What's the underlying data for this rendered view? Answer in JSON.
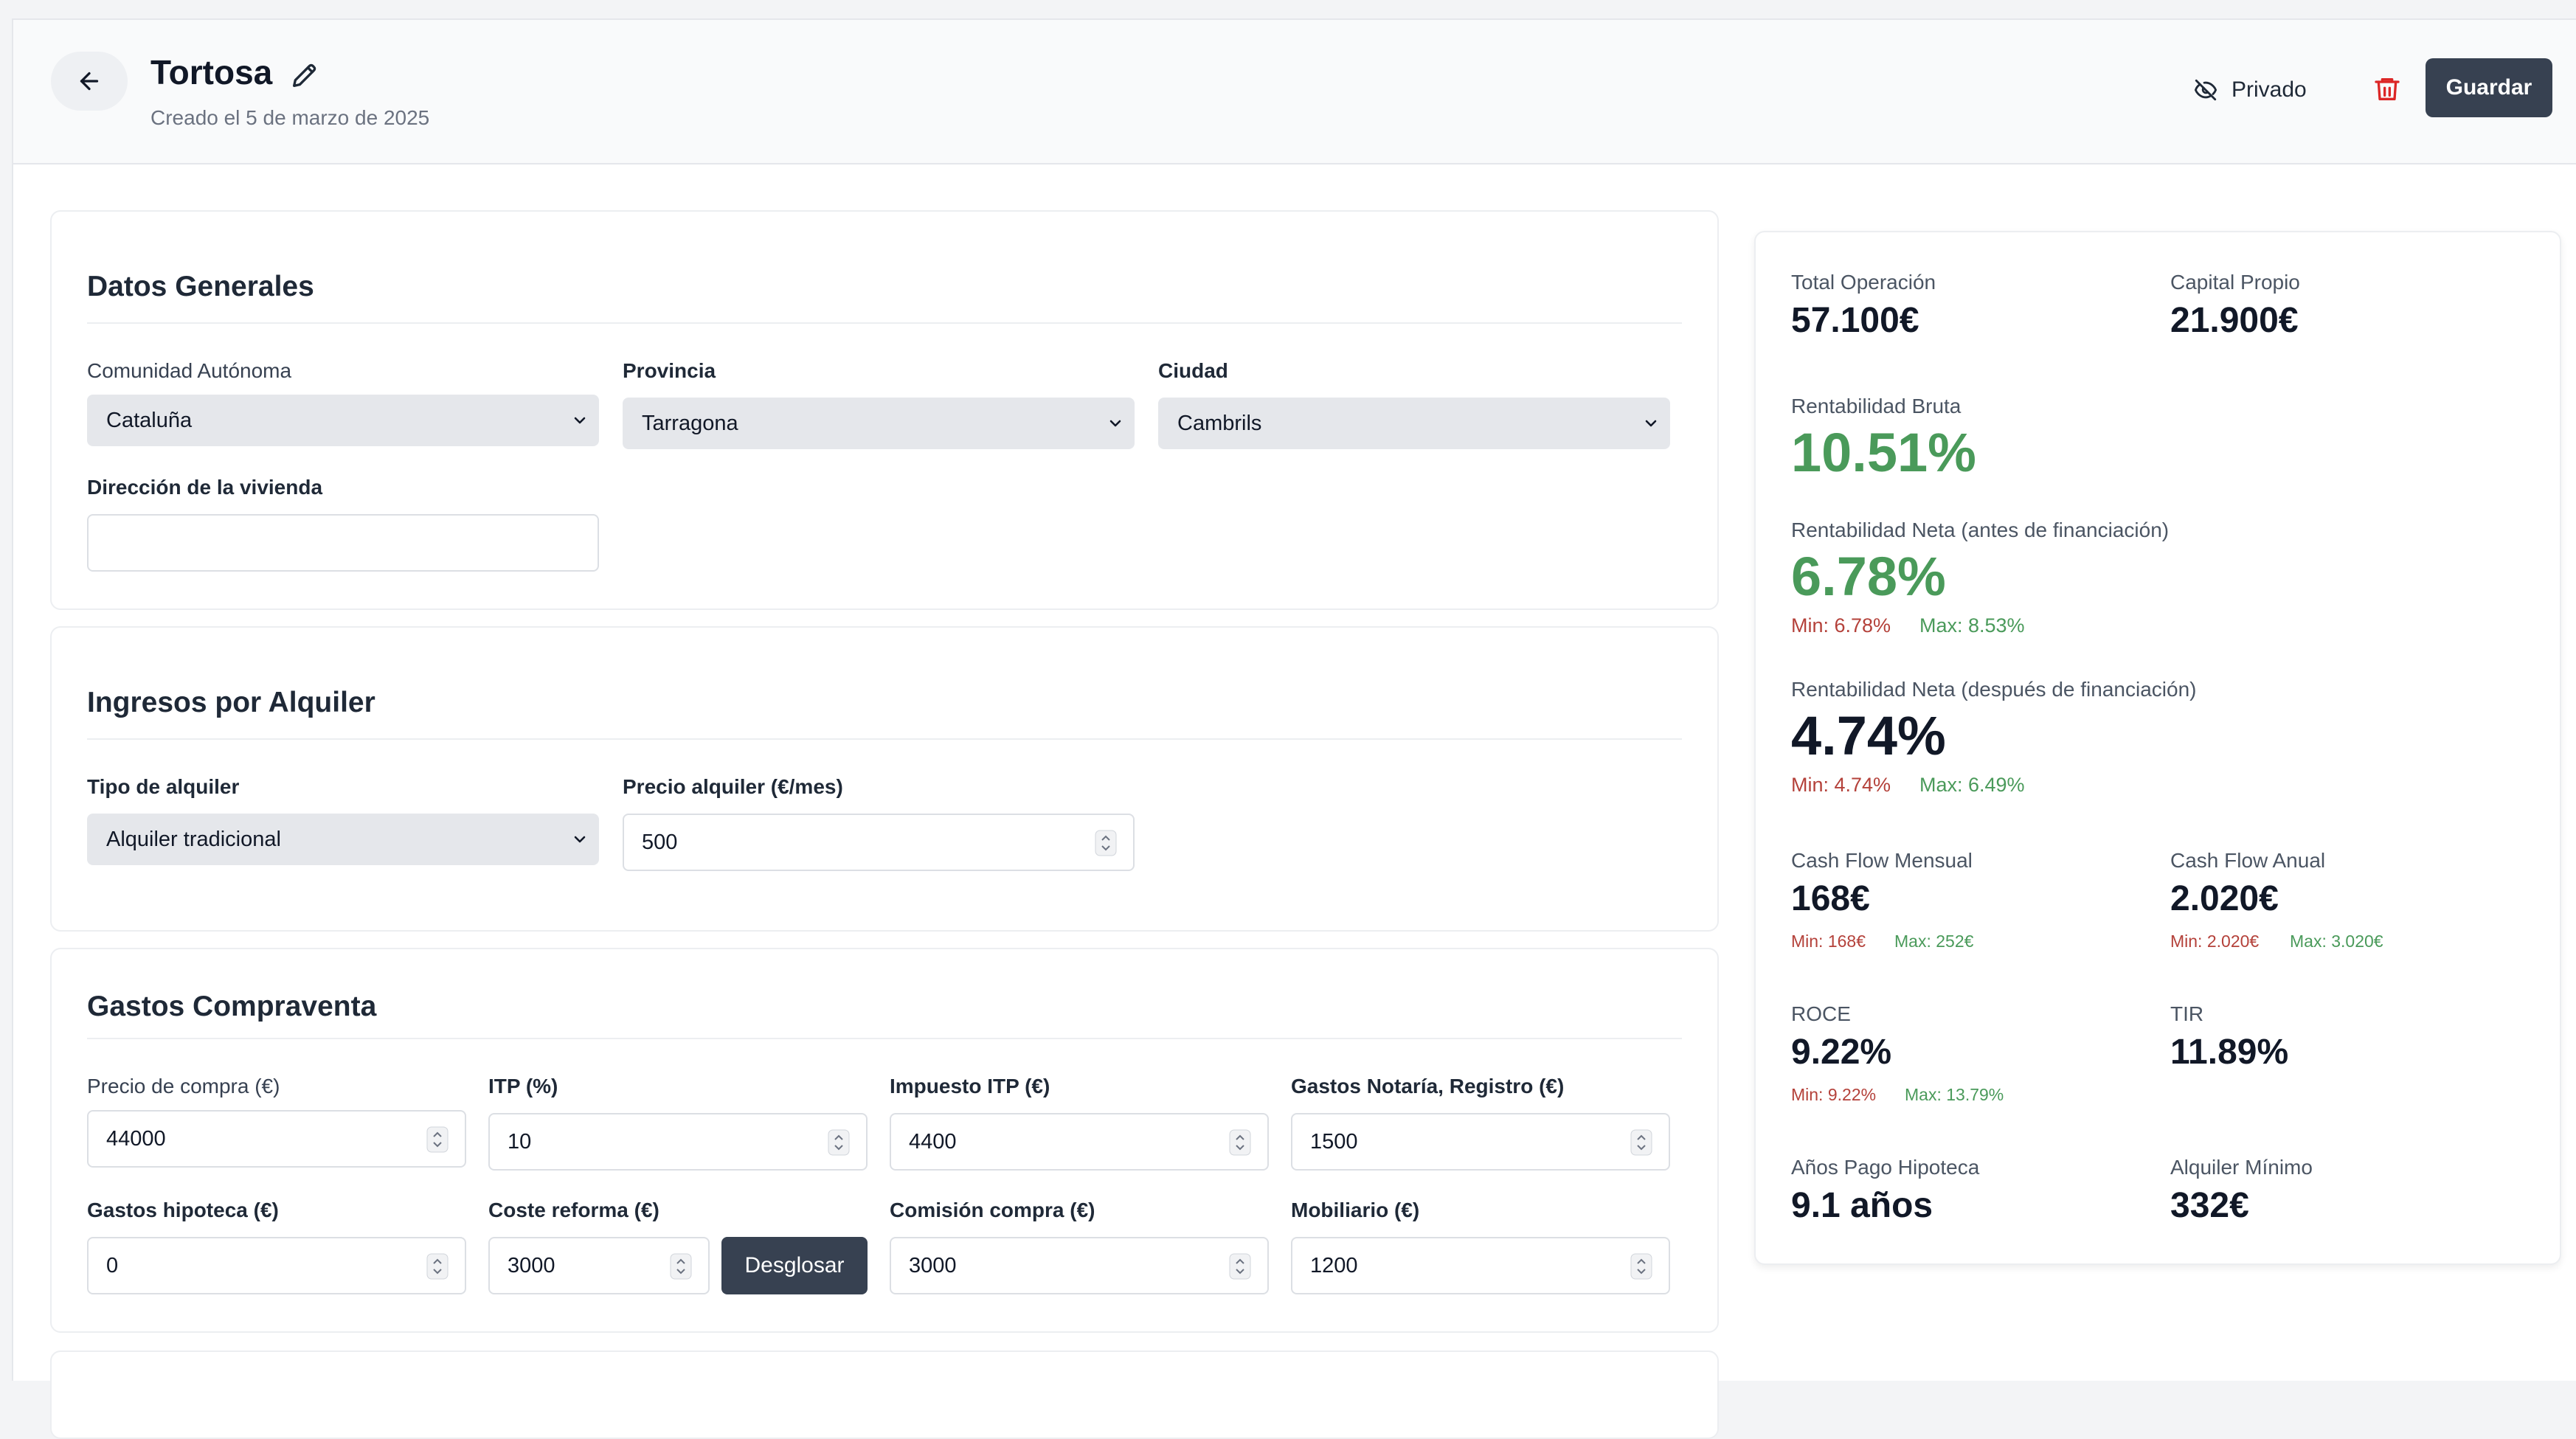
{
  "header": {
    "title": "Tortosa",
    "subtitle": "Creado el 5 de marzo de 2025",
    "privado_label": "Privado",
    "guardar_label": "Guardar"
  },
  "datos_generales": {
    "title": "Datos Generales",
    "comunidad_label": "Comunidad Autónoma",
    "comunidad_value": "Cataluña",
    "provincia_label": "Provincia",
    "provincia_value": "Tarragona",
    "ciudad_label": "Ciudad",
    "ciudad_value": "Cambrils",
    "direccion_label": "Dirección de la vivienda",
    "direccion_value": ""
  },
  "ingresos": {
    "title": "Ingresos por Alquiler",
    "tipo_label": "Tipo de alquiler",
    "tipo_value": "Alquiler tradicional",
    "precio_label": "Precio alquiler (€/mes)",
    "precio_value": "500"
  },
  "gastos": {
    "title": "Gastos Compraventa",
    "precio_compra_label": "Precio de compra (€)",
    "precio_compra_value": "44000",
    "itp_label": "ITP (%)",
    "itp_value": "10",
    "impuesto_itp_label": "Impuesto ITP (€)",
    "impuesto_itp_value": "4400",
    "notaria_label": "Gastos Notaría, Registro (€)",
    "notaria_value": "1500",
    "hipoteca_label": "Gastos hipoteca (€)",
    "hipoteca_value": "0",
    "reforma_label": "Coste reforma (€)",
    "reforma_value": "3000",
    "desglosar_label": "Desglosar",
    "comision_label": "Comisión compra (€)",
    "comision_value": "3000",
    "mobiliario_label": "Mobiliario (€)",
    "mobiliario_value": "1200"
  },
  "stats": {
    "total_operacion_label": "Total Operación",
    "total_operacion_value": "57.100€",
    "capital_propio_label": "Capital Propio",
    "capital_propio_value": "21.900€",
    "rent_bruta_label": "Rentabilidad Bruta",
    "rent_bruta_value": "10.51%",
    "rent_neta_antes_label": "Rentabilidad Neta (antes de financiación)",
    "rent_neta_antes_value": "6.78%",
    "rent_neta_antes_min": "Min: 6.78%",
    "rent_neta_antes_max": "Max: 8.53%",
    "rent_neta_despues_label": "Rentabilidad Neta (después de financiación)",
    "rent_neta_despues_value": "4.74%",
    "rent_neta_despues_min": "Min: 4.74%",
    "rent_neta_despues_max": "Max: 6.49%",
    "cf_mensual_label": "Cash Flow Mensual",
    "cf_mensual_value": "168€",
    "cf_mensual_min": "Min: 168€",
    "cf_mensual_max": "Max: 252€",
    "cf_anual_label": "Cash Flow Anual",
    "cf_anual_value": "2.020€",
    "cf_anual_min": "Min: 2.020€",
    "cf_anual_max": "Max: 3.020€",
    "roce_label": "ROCE",
    "roce_value": "9.22%",
    "roce_min": "Min: 9.22%",
    "roce_max": "Max: 13.79%",
    "tir_label": "TIR",
    "tir_value": "11.89%",
    "anos_label": "Años Pago Hipoteca",
    "anos_value": "9.1 años",
    "alquiler_min_label": "Alquiler Mínimo",
    "alquiler_min_value": "332€"
  },
  "colors": {
    "accent_dark": "#374151",
    "positive": "#4a9a5a",
    "negative": "#b4413a",
    "danger_icon": "#dc2626"
  }
}
